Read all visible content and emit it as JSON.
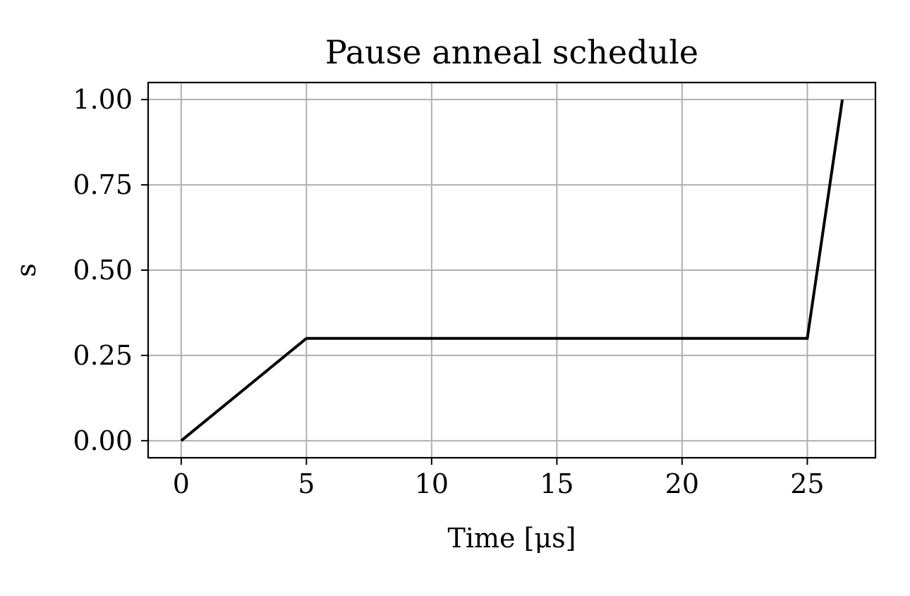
{
  "chart_data": {
    "type": "line",
    "title": "Pause anneal schedule",
    "xlabel": "Time [μs]",
    "ylabel": "s",
    "xlim": [
      -1.32,
      27.72
    ],
    "ylim": [
      -0.05,
      1.05
    ],
    "x_ticks": [
      0,
      5,
      10,
      15,
      20,
      25
    ],
    "x_tick_labels": [
      "0",
      "5",
      "10",
      "15",
      "20",
      "25"
    ],
    "y_ticks": [
      0.0,
      0.25,
      0.5,
      0.75,
      1.0
    ],
    "y_tick_labels": [
      "0.00",
      "0.25",
      "0.50",
      "0.75",
      "1.00"
    ],
    "grid": true,
    "colors": {
      "line": "#000000",
      "grid": "#b0b0b0",
      "axes": "#000000"
    },
    "series": [
      {
        "x": [
          0,
          5,
          25,
          26.4
        ],
        "y": [
          0.0,
          0.3,
          0.3,
          1.0
        ]
      }
    ]
  }
}
